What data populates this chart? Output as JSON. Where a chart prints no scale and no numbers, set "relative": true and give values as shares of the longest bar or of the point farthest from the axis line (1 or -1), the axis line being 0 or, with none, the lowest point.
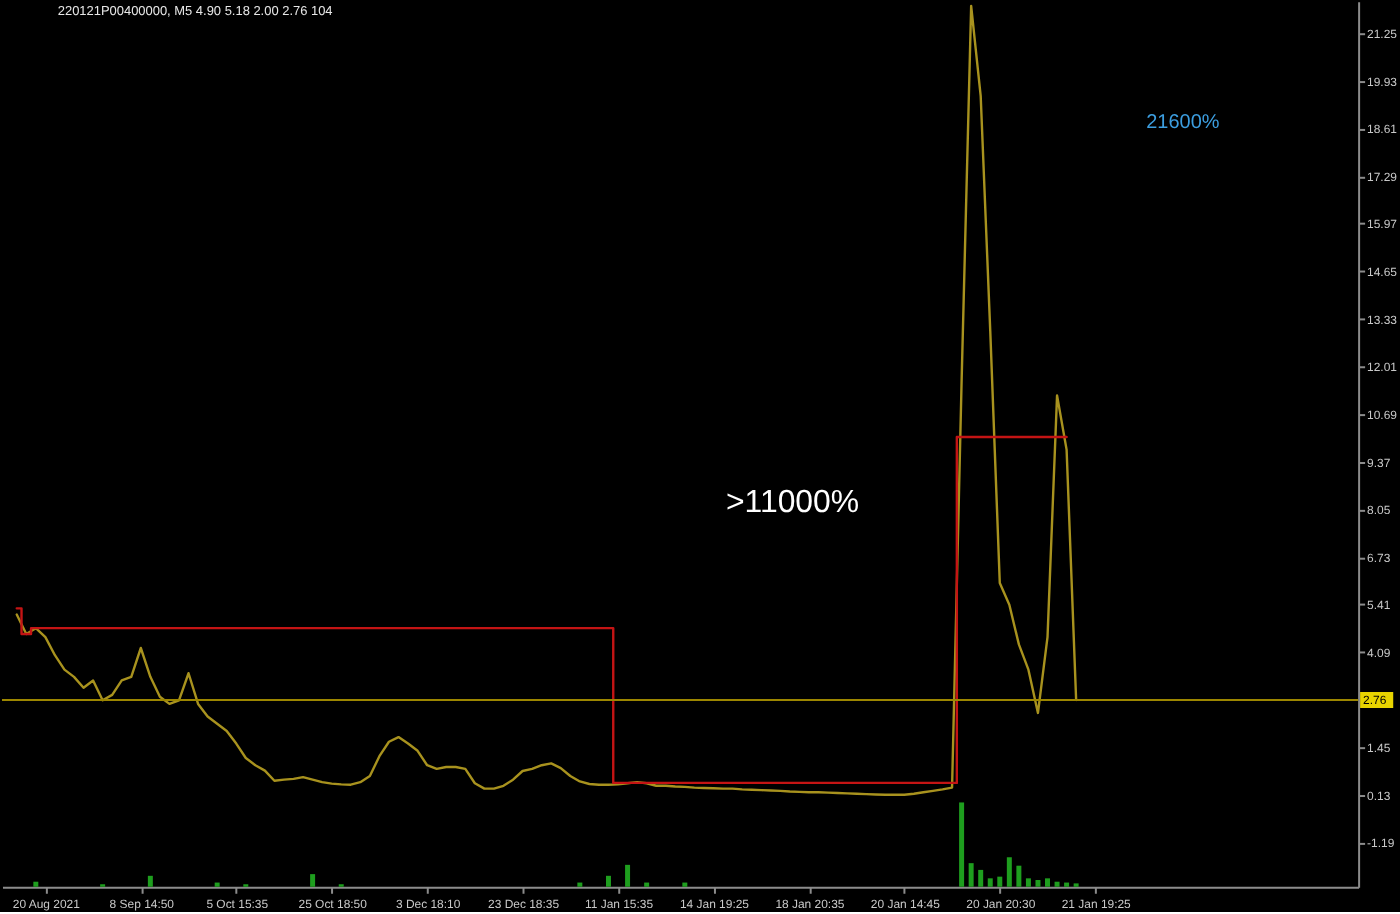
{
  "chart_data": [
    {
      "type": "line",
      "title": "220121P00400000, M5 4.90 5.18 2.00 2.76 104",
      "categories": [
        null,
        null,
        null,
        null,
        null,
        null,
        null,
        null,
        null,
        null,
        null,
        null,
        null,
        null,
        null,
        null,
        null,
        null,
        null,
        null,
        null,
        null,
        null,
        null,
        null,
        null,
        null,
        null,
        null,
        null,
        null,
        null,
        null,
        null,
        null,
        null,
        null,
        null,
        null,
        null,
        null,
        null,
        null,
        null,
        null,
        null,
        null,
        null,
        null,
        null,
        null,
        null,
        null,
        null,
        null,
        null,
        null,
        null,
        null,
        null,
        null,
        null,
        null,
        null,
        null,
        null,
        null,
        null,
        null,
        null,
        null,
        null,
        null,
        null,
        null,
        null,
        null,
        null,
        null,
        null,
        null,
        null,
        null,
        null,
        null,
        null,
        null,
        null,
        null,
        null,
        null,
        null,
        null,
        null,
        null,
        null,
        null,
        null,
        null,
        null,
        null,
        null,
        null,
        null,
        null,
        null,
        null,
        null,
        null,
        null,
        null,
        null,
        null,
        null,
        null,
        null,
        null,
        null,
        null,
        null,
        null,
        null,
        null,
        null,
        null,
        null,
        null,
        null,
        null,
        null,
        null,
        null,
        null,
        null,
        null,
        null,
        null,
        null,
        null,
        null
      ],
      "series": [
        {
          "type": "line",
          "color": "#a8921e",
          "values": [
            5.13,
            4.59,
            4.75,
            4.5,
            4.0,
            3.6,
            3.4,
            3.1,
            3.3,
            2.75,
            2.9,
            3.3,
            3.4,
            4.2,
            3.4,
            2.85,
            2.65,
            2.75,
            3.5,
            2.65,
            2.3,
            2.1,
            1.9,
            1.55,
            1.15,
            0.95,
            0.8,
            0.52,
            0.55,
            0.57,
            0.62,
            0.55,
            0.48,
            0.44,
            0.42,
            0.41,
            0.48,
            0.65,
            1.2,
            1.6,
            1.73,
            1.55,
            1.35,
            0.95,
            0.85,
            0.9,
            0.9,
            0.85,
            0.45,
            0.3,
            0.3,
            0.38,
            0.55,
            0.79,
            0.85,
            0.95,
            1.0,
            0.87,
            0.65,
            0.5,
            0.43,
            0.41,
            0.41,
            0.42,
            0.45,
            0.48,
            0.45,
            0.38,
            0.38,
            0.36,
            0.35,
            0.33,
            0.32,
            0.31,
            0.3,
            0.3,
            0.28,
            0.27,
            0.26,
            0.25,
            0.24,
            0.22,
            0.21,
            0.2,
            0.2,
            0.19,
            0.18,
            0.17,
            0.16,
            0.15,
            0.14,
            0.13,
            0.13,
            0.13,
            0.16,
            0.2,
            0.24,
            0.28,
            0.33,
            11.6,
            22.0,
            19.5,
            13.0,
            6.0,
            5.4,
            4.3,
            3.6,
            2.4,
            4.5,
            11.2,
            9.7,
            2.76,
            null,
            null,
            null,
            null,
            null,
            null,
            null,
            null,
            null,
            null,
            null,
            null,
            null,
            null,
            null,
            null,
            null,
            null,
            null,
            null,
            null,
            null,
            null,
            null,
            null,
            null,
            null,
            null
          ]
        },
        {
          "type": "step",
          "color": "#c41414",
          "values": [
            5.3,
            4.59,
            4.75,
            4.75,
            4.75,
            4.75,
            4.75,
            4.75,
            4.75,
            4.75,
            4.75,
            4.75,
            4.75,
            4.75,
            4.75,
            4.75,
            4.75,
            4.75,
            4.75,
            4.75,
            4.75,
            4.75,
            4.75,
            4.75,
            4.75,
            4.75,
            4.75,
            4.75,
            4.75,
            4.75,
            4.75,
            4.75,
            4.75,
            4.75,
            4.75,
            4.75,
            4.75,
            4.75,
            4.75,
            4.75,
            4.75,
            4.75,
            4.75,
            4.75,
            4.75,
            4.75,
            4.75,
            4.75,
            4.75,
            4.75,
            4.75,
            4.75,
            4.75,
            4.75,
            4.75,
            4.75,
            4.75,
            4.75,
            4.75,
            4.75,
            4.75,
            4.75,
            4.75,
            0.46,
            0.46,
            0.46,
            0.46,
            0.46,
            0.46,
            0.46,
            0.46,
            0.46,
            0.46,
            0.46,
            0.46,
            0.46,
            0.46,
            0.46,
            0.46,
            0.46,
            0.46,
            0.46,
            0.46,
            0.46,
            0.46,
            0.46,
            0.46,
            0.46,
            0.46,
            0.46,
            0.46,
            0.46,
            0.46,
            0.46,
            0.46,
            0.46,
            0.46,
            0.46,
            0.46,
            10.05,
            10.05,
            10.05,
            10.05,
            10.05,
            10.05,
            10.05,
            10.05,
            10.05,
            10.05,
            10.05,
            10.05,
            null,
            null,
            null,
            null,
            null,
            null,
            null,
            null,
            null,
            null,
            null,
            null,
            null,
            null,
            null,
            null,
            null,
            null,
            null,
            null,
            null,
            null,
            null,
            null,
            null,
            null,
            null,
            null,
            null
          ]
        }
      ],
      "ylim": [
        -2.42,
        22.13
      ],
      "yticks": [
        21.25,
        19.93,
        18.61,
        17.29,
        15.97,
        14.65,
        13.33,
        12.01,
        10.69,
        9.37,
        8.05,
        6.73,
        5.41,
        4.09,
        1.45,
        0.13,
        -1.19
      ],
      "ref_lines": [
        {
          "axis": "y",
          "value": 2.76,
          "label": "2.76",
          "color": "#9c8600"
        }
      ],
      "annotations": [
        ">11000%",
        "21600%"
      ]
    },
    {
      "type": "bar",
      "relative": true,
      "color": "#1e9e1e",
      "categories": [
        null,
        null,
        null,
        "20 Aug 2021",
        null,
        null,
        null,
        null,
        null,
        null,
        null,
        null,
        null,
        "8 Sep 14:50",
        null,
        null,
        null,
        null,
        null,
        null,
        null,
        null,
        null,
        "5 Oct 15:35",
        null,
        null,
        null,
        null,
        null,
        null,
        null,
        null,
        null,
        "25 Oct 18:50",
        null,
        null,
        null,
        null,
        null,
        null,
        null,
        null,
        null,
        "3 Dec 18:10",
        null,
        null,
        null,
        null,
        null,
        null,
        null,
        null,
        null,
        "23 Dec 18:35",
        null,
        null,
        null,
        null,
        null,
        null,
        null,
        null,
        null,
        "11 Jan 15:35",
        null,
        null,
        null,
        null,
        null,
        null,
        null,
        null,
        null,
        "14 Jan 19:25",
        null,
        null,
        null,
        null,
        null,
        null,
        null,
        null,
        null,
        "18 Jan 20:35",
        null,
        null,
        null,
        null,
        null,
        null,
        null,
        null,
        null,
        "20 Jan 14:45",
        null,
        null,
        null,
        null,
        null,
        null,
        null,
        null,
        null,
        "20 Jan 20:30",
        null,
        null,
        null,
        null,
        null,
        null,
        null,
        null,
        null,
        "21 Jan 19:25",
        null,
        null,
        null,
        null,
        null,
        null,
        null,
        null,
        null,
        null,
        null,
        null,
        null,
        null,
        null,
        null,
        null,
        null,
        null,
        null,
        null,
        null,
        null,
        null,
        null,
        null
      ],
      "values": [
        null,
        null,
        0.06,
        null,
        null,
        null,
        null,
        null,
        null,
        0.03,
        null,
        null,
        null,
        null,
        0.13,
        null,
        null,
        null,
        null,
        null,
        null,
        0.05,
        null,
        null,
        0.03,
        null,
        null,
        null,
        null,
        null,
        null,
        0.15,
        null,
        null,
        0.03,
        null,
        null,
        null,
        null,
        null,
        null,
        null,
        null,
        null,
        null,
        null,
        null,
        null,
        null,
        null,
        null,
        null,
        null,
        null,
        null,
        null,
        null,
        null,
        null,
        0.05,
        null,
        null,
        0.13,
        null,
        0.26,
        null,
        0.05,
        null,
        null,
        null,
        0.05,
        null,
        null,
        null,
        null,
        null,
        null,
        null,
        null,
        null,
        null,
        null,
        null,
        null,
        null,
        null,
        null,
        null,
        null,
        null,
        null,
        null,
        null,
        null,
        null,
        null,
        null,
        null,
        null,
        1,
        0.28,
        0.2,
        0.1,
        0.12,
        0.35,
        0.25,
        0.1,
        0.08,
        0.1,
        0.06,
        0.05,
        0.04,
        null,
        null,
        null,
        null,
        null,
        null,
        null,
        null,
        null,
        null,
        null,
        null,
        null,
        null,
        null,
        null,
        null,
        null,
        null,
        null,
        null,
        null,
        null,
        null,
        null,
        null,
        null,
        null
      ]
    }
  ]
}
